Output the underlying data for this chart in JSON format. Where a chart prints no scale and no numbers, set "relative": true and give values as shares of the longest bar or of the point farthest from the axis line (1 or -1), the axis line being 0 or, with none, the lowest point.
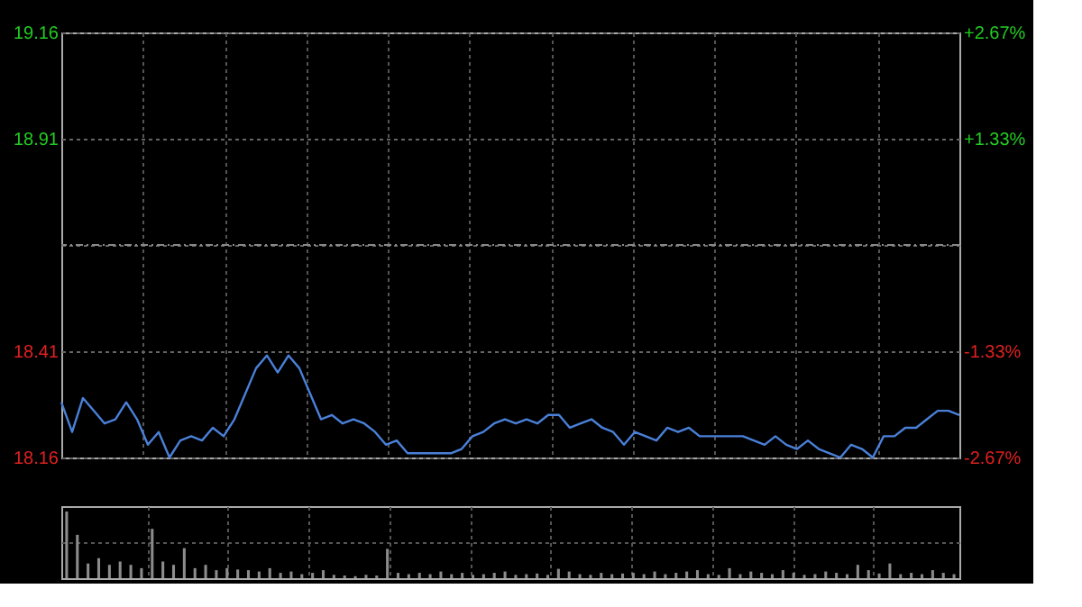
{
  "chart_data": [
    {
      "type": "line",
      "categories": [
        null,
        null,
        null,
        null,
        null,
        null,
        null,
        null,
        null,
        null,
        null,
        null,
        null,
        null,
        null,
        null,
        null,
        null,
        null,
        null,
        null,
        null,
        null,
        null,
        null,
        null,
        null,
        null,
        null,
        null,
        null,
        null,
        null,
        null,
        null,
        null,
        null,
        null,
        null,
        null,
        null,
        null,
        null,
        null,
        null,
        null,
        null,
        null,
        null,
        null,
        null,
        null,
        null,
        null,
        null,
        null,
        null,
        null,
        null,
        null,
        null,
        null,
        null,
        null,
        null,
        null,
        null,
        null,
        null,
        null,
        null,
        null,
        null,
        null,
        null,
        null,
        null,
        null,
        null,
        null,
        null,
        null,
        null,
        null
      ],
      "series": [
        {
          "color": "#4a80d8",
          "values": [
            18.29,
            18.22,
            18.3,
            18.27,
            18.24,
            18.25,
            18.29,
            18.25,
            18.19,
            18.22,
            18.16,
            18.2,
            18.21,
            18.2,
            18.23,
            18.21,
            18.25,
            18.31,
            18.37,
            18.4,
            18.36,
            18.4,
            18.37,
            18.31,
            18.25,
            18.26,
            18.24,
            18.25,
            18.24,
            18.22,
            18.19,
            18.2,
            18.17,
            18.17,
            18.17,
            18.17,
            18.17,
            18.18,
            18.21,
            18.22,
            18.24,
            18.25,
            18.24,
            18.25,
            18.24,
            18.26,
            18.26,
            18.23,
            18.24,
            18.25,
            18.23,
            18.22,
            18.19,
            18.22,
            18.21,
            18.2,
            18.23,
            18.22,
            18.23,
            18.21,
            18.21,
            18.21,
            18.21,
            18.21,
            18.2,
            18.19,
            18.21,
            18.19,
            18.18,
            18.2,
            18.18,
            18.17,
            18.16,
            18.19,
            18.18,
            18.16,
            18.21,
            18.21,
            18.23,
            18.23,
            18.25,
            18.27,
            18.27,
            18.26
          ]
        }
      ],
      "ylim": [
        18.16,
        19.16
      ],
      "yticks": [
        18.16,
        18.41,
        {
          "value": 18.66,
          "label": null
        },
        18.91,
        19.16
      ],
      "y2lim": [
        -2.67,
        2.67
      ],
      "y2ticks": [
        {
          "value": -2.67,
          "label": "-2.67%"
        },
        {
          "value": -1.33,
          "label": "-1.33%"
        },
        {
          "value": 0,
          "label": null
        },
        {
          "value": 1.33,
          "label": "+1.33%"
        },
        {
          "value": 2.67,
          "label": "+2.67%"
        }
      ],
      "ref_lines": [
        {
          "axis": "y2",
          "value": 0,
          "label": null,
          "color": "#888888",
          "line_style": "dashed"
        }
      ],
      "grid": true,
      "line_style": "solid",
      "marker": "none"
    },
    {
      "type": "bar",
      "relative": true,
      "grid": true,
      "categories": [
        null,
        null,
        null,
        null,
        null,
        null,
        null,
        null,
        null,
        null,
        null,
        null,
        null,
        null,
        null,
        null,
        null,
        null,
        null,
        null,
        null,
        null,
        null,
        null,
        null,
        null,
        null,
        null,
        null,
        null,
        null,
        null,
        null,
        null,
        null,
        null,
        null,
        null,
        null,
        null,
        null,
        null,
        null,
        null,
        null,
        null,
        null,
        null,
        null,
        null,
        null,
        null,
        null,
        null,
        null,
        null,
        null,
        null,
        null,
        null,
        null,
        null,
        null,
        null,
        null,
        null,
        null,
        null,
        null,
        null,
        null,
        null,
        null,
        null,
        null,
        null,
        null,
        null,
        null,
        null,
        null,
        null,
        null,
        null
      ],
      "series": [
        {
          "color": "#8c8c8c",
          "values": [
            1.0,
            0.65,
            0.22,
            0.3,
            0.2,
            0.25,
            0.2,
            0.15,
            0.74,
            0.25,
            0.2,
            0.45,
            0.15,
            0.2,
            0.12,
            0.15,
            0.13,
            0.12,
            0.1,
            0.15,
            0.08,
            0.1,
            0.06,
            0.08,
            0.12,
            0.05,
            0.04,
            0.03,
            0.05,
            0.04,
            0.44,
            0.08,
            0.06,
            0.08,
            0.06,
            0.1,
            0.06,
            0.08,
            0.05,
            0.06,
            0.08,
            0.1,
            0.05,
            0.06,
            0.07,
            0.05,
            0.14,
            0.1,
            0.06,
            0.05,
            0.08,
            0.06,
            0.07,
            0.08,
            0.06,
            0.1,
            0.06,
            0.08,
            0.1,
            0.12,
            0.06,
            0.05,
            0.15,
            0.06,
            0.1,
            0.08,
            0.06,
            0.12,
            0.08,
            0.05,
            0.06,
            0.1,
            0.08,
            0.06,
            0.2,
            0.12,
            0.07,
            0.22,
            0.06,
            0.08,
            0.06,
            0.12,
            0.08,
            0.06
          ]
        }
      ]
    }
  ]
}
